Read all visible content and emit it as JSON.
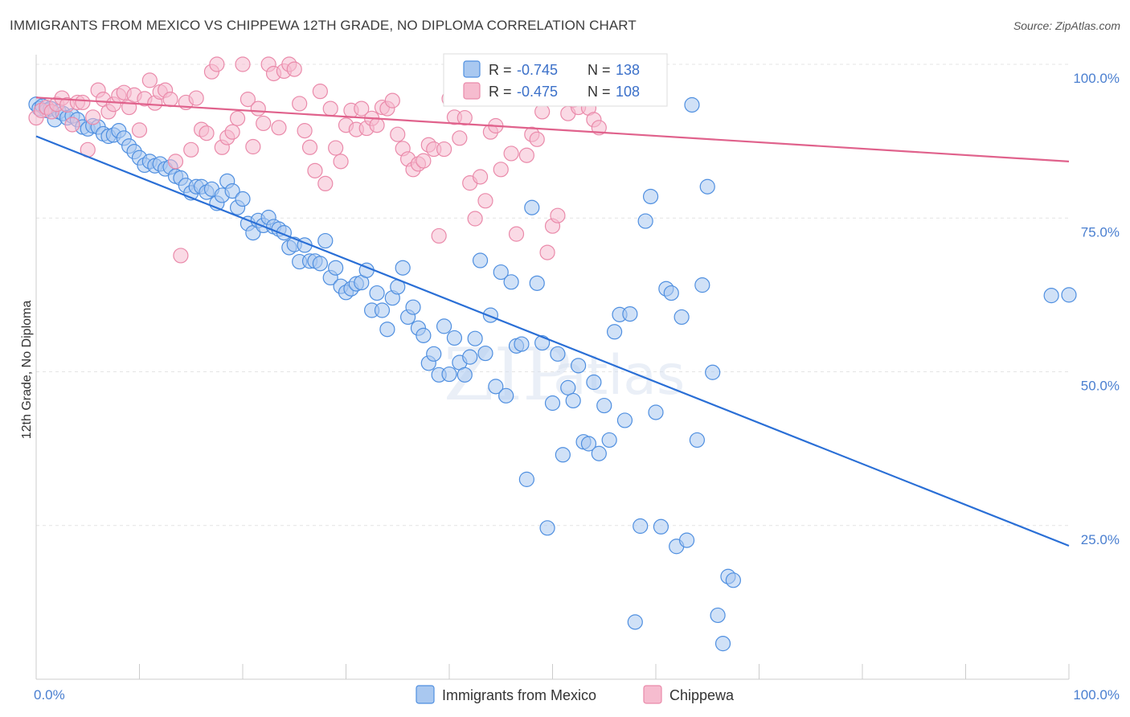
{
  "header": {
    "title": "IMMIGRANTS FROM MEXICO VS CHIPPEWA 12TH GRADE, NO DIPLOMA CORRELATION CHART",
    "source": "Source: ZipAtlas.com"
  },
  "watermark": {
    "zip": "ZIP",
    "atlas": "atlas"
  },
  "colors": {
    "blue": "#4f8fe0",
    "blue_fill": "#a9c8f0",
    "blue_line": "#2a6fd6",
    "pink": "#ea8aaa",
    "pink_fill": "#f6bccf",
    "pink_line": "#e0628c",
    "axis_label": "#4a7fd0"
  },
  "legend": {
    "r_label": "R =",
    "n_label": "N =",
    "series": [
      {
        "r": "-0.745",
        "n": "138"
      },
      {
        "r": "-0.475",
        "n": "108"
      }
    ]
  },
  "bottom_legend": [
    "Immigrants from Mexico",
    "Chippewa"
  ],
  "chart_data": {
    "type": "scatter",
    "title": "IMMIGRANTS FROM MEXICO VS CHIPPEWA 12TH GRADE, NO DIPLOMA CORRELATION CHART",
    "xlabel": "",
    "ylabel": "12th Grade, No Diploma",
    "xlim": [
      0,
      100
    ],
    "ylim": [
      0,
      100
    ],
    "x_tick_labels": [
      "0.0%",
      "100.0%"
    ],
    "y_tick_labels": [
      "100.0%",
      "75.0%",
      "50.0%",
      "25.0%"
    ],
    "y_ticks": [
      100,
      75,
      50,
      25
    ],
    "grid": true,
    "legend_position": "top-center",
    "series": [
      {
        "name": "Immigrants from Mexico",
        "trend": [
          [
            0,
            88.3
          ],
          [
            100,
            21.7
          ]
        ],
        "points": [
          [
            0,
            93.5
          ],
          [
            0.3,
            92.8
          ],
          [
            0.6,
            93.2
          ],
          [
            1,
            92.5
          ],
          [
            1.4,
            92.8
          ],
          [
            1.8,
            91
          ],
          [
            2.2,
            92.3
          ],
          [
            2.6,
            92
          ],
          [
            3,
            91.3
          ],
          [
            3.5,
            91.6
          ],
          [
            4,
            91
          ],
          [
            4.5,
            89.8
          ],
          [
            5,
            89.5
          ],
          [
            5.5,
            90
          ],
          [
            6,
            89.8
          ],
          [
            6.5,
            88.7
          ],
          [
            7,
            88.3
          ],
          [
            7.5,
            88.5
          ],
          [
            8,
            89.2
          ],
          [
            8.5,
            88
          ],
          [
            9,
            86.7
          ],
          [
            9.5,
            85.8
          ],
          [
            10,
            84.8
          ],
          [
            10.5,
            83.6
          ],
          [
            11,
            84.2
          ],
          [
            11.5,
            83.5
          ],
          [
            12,
            83.8
          ],
          [
            12.5,
            83
          ],
          [
            13,
            83.3
          ],
          [
            13.5,
            81.8
          ],
          [
            14,
            81.5
          ],
          [
            14.5,
            80.3
          ],
          [
            15,
            79.1
          ],
          [
            15.5,
            80.1
          ],
          [
            16,
            80.1
          ],
          [
            16.5,
            79.2
          ],
          [
            17,
            79.7
          ],
          [
            17.5,
            77.4
          ],
          [
            18,
            78.7
          ],
          [
            18.5,
            81
          ],
          [
            19,
            79.4
          ],
          [
            19.5,
            76.7
          ],
          [
            20,
            78.1
          ],
          [
            20.5,
            74.1
          ],
          [
            21,
            72.6
          ],
          [
            21.5,
            74.6
          ],
          [
            22,
            73.8
          ],
          [
            22.5,
            75.1
          ],
          [
            23,
            73.6
          ],
          [
            23.5,
            73.2
          ],
          [
            24,
            72.6
          ],
          [
            24.5,
            70.2
          ],
          [
            25,
            70.7
          ],
          [
            25.5,
            67.9
          ],
          [
            26,
            70.6
          ],
          [
            26.5,
            68
          ],
          [
            27,
            68
          ],
          [
            27.5,
            67.6
          ],
          [
            28,
            71.3
          ],
          [
            28.5,
            65.3
          ],
          [
            29,
            66.9
          ],
          [
            29.5,
            63.9
          ],
          [
            30,
            62.9
          ],
          [
            30.5,
            63.5
          ],
          [
            31,
            64.3
          ],
          [
            31.5,
            64.5
          ],
          [
            32,
            66.5
          ],
          [
            32.5,
            60
          ],
          [
            33,
            62.8
          ],
          [
            33.5,
            60
          ],
          [
            34,
            56.9
          ],
          [
            34.5,
            62
          ],
          [
            35,
            63.8
          ],
          [
            35.5,
            66.9
          ],
          [
            36,
            58.9
          ],
          [
            36.5,
            60.5
          ],
          [
            37,
            57.1
          ],
          [
            37.5,
            55.9
          ],
          [
            38,
            51.4
          ],
          [
            38.5,
            52.9
          ],
          [
            39,
            49.5
          ],
          [
            39.5,
            57.4
          ],
          [
            40,
            49.6
          ],
          [
            40.5,
            55.5
          ],
          [
            41,
            51.5
          ],
          [
            41.5,
            49.5
          ],
          [
            42,
            52.4
          ],
          [
            42.5,
            55.4
          ],
          [
            43,
            68.1
          ],
          [
            43.5,
            53
          ],
          [
            44,
            59.2
          ],
          [
            44.5,
            47.6
          ],
          [
            45,
            66.2
          ],
          [
            45.5,
            46.1
          ],
          [
            46,
            64.6
          ],
          [
            46.5,
            54.2
          ],
          [
            47,
            54.5
          ],
          [
            47.5,
            32.5
          ],
          [
            48,
            76.7
          ],
          [
            48.5,
            64.4
          ],
          [
            49,
            54.7
          ],
          [
            49.5,
            24.6
          ],
          [
            50,
            44.9
          ],
          [
            50.5,
            52.9
          ],
          [
            51,
            36.5
          ],
          [
            51.5,
            47.4
          ],
          [
            52,
            45.3
          ],
          [
            52.5,
            51
          ],
          [
            53,
            38.6
          ],
          [
            53.5,
            38.3
          ],
          [
            54,
            48.3
          ],
          [
            54.5,
            36.7
          ],
          [
            55,
            44.5
          ],
          [
            55.5,
            38.9
          ],
          [
            56,
            56.5
          ],
          [
            56.5,
            59.3
          ],
          [
            57,
            42.1
          ],
          [
            57.5,
            59.4
          ],
          [
            58,
            9.3
          ],
          [
            58.5,
            24.9
          ],
          [
            59,
            74.5
          ],
          [
            59.5,
            78.5
          ],
          [
            60,
            43.4
          ],
          [
            60.5,
            24.8
          ],
          [
            61,
            63.5
          ],
          [
            61.5,
            62.8
          ],
          [
            62,
            21.6
          ],
          [
            62.5,
            58.9
          ],
          [
            63,
            22.6
          ],
          [
            63.5,
            93.4
          ],
          [
            64,
            38.9
          ],
          [
            64.5,
            64.1
          ],
          [
            65,
            80.1
          ],
          [
            65.5,
            49.9
          ],
          [
            66,
            10.4
          ],
          [
            66.5,
            5.8
          ],
          [
            67,
            16.7
          ],
          [
            67.5,
            16.1
          ],
          [
            98.3,
            62.4
          ],
          [
            100,
            62.5
          ]
        ]
      },
      {
        "name": "Chippewa",
        "trend": [
          [
            0,
            94.6
          ],
          [
            100,
            84.2
          ]
        ],
        "points": [
          [
            0,
            91.3
          ],
          [
            0.5,
            92.5
          ],
          [
            1,
            93
          ],
          [
            1.5,
            92.3
          ],
          [
            2,
            93.5
          ],
          [
            2.5,
            94.5
          ],
          [
            3,
            93.4
          ],
          [
            3.5,
            90.2
          ],
          [
            4,
            93.8
          ],
          [
            4.5,
            93.8
          ],
          [
            5,
            86.1
          ],
          [
            5.5,
            91.4
          ],
          [
            6,
            95.8
          ],
          [
            6.5,
            94.3
          ],
          [
            7,
            92.3
          ],
          [
            7.5,
            93.5
          ],
          [
            8,
            94.9
          ],
          [
            8.5,
            95.4
          ],
          [
            9,
            93
          ],
          [
            9.5,
            95
          ],
          [
            10,
            89.3
          ],
          [
            10.5,
            94.4
          ],
          [
            11,
            97.4
          ],
          [
            11.5,
            93.7
          ],
          [
            12,
            95.5
          ],
          [
            12.5,
            95.8
          ],
          [
            13,
            94.3
          ],
          [
            13.5,
            84.2
          ],
          [
            14,
            68.9
          ],
          [
            14.5,
            93.8
          ],
          [
            15,
            86.1
          ],
          [
            15.5,
            94.5
          ],
          [
            16,
            89.4
          ],
          [
            16.5,
            88.8
          ],
          [
            17,
            98.8
          ],
          [
            17.5,
            100
          ],
          [
            18,
            86.5
          ],
          [
            18.5,
            88.1
          ],
          [
            19,
            89
          ],
          [
            19.5,
            91.2
          ],
          [
            20,
            100
          ],
          [
            20.5,
            94.3
          ],
          [
            21,
            86.6
          ],
          [
            21.5,
            92.8
          ],
          [
            22,
            90.4
          ],
          [
            22.5,
            100
          ],
          [
            23,
            98.5
          ],
          [
            23.5,
            89.7
          ],
          [
            24,
            98.9
          ],
          [
            24.5,
            100
          ],
          [
            25,
            99.2
          ],
          [
            25.5,
            93.6
          ],
          [
            26,
            89.2
          ],
          [
            26.5,
            86.5
          ],
          [
            27,
            82.7
          ],
          [
            27.5,
            95.6
          ],
          [
            28,
            80.6
          ],
          [
            28.5,
            92.8
          ],
          [
            29,
            86.4
          ],
          [
            29.5,
            84.2
          ],
          [
            30,
            90.1
          ],
          [
            30.5,
            92.5
          ],
          [
            31,
            89.4
          ],
          [
            31.5,
            92.8
          ],
          [
            32,
            89.6
          ],
          [
            32.5,
            91.2
          ],
          [
            33,
            90.1
          ],
          [
            33.5,
            93
          ],
          [
            34,
            92.8
          ],
          [
            34.5,
            94.1
          ],
          [
            35,
            88.6
          ],
          [
            35.5,
            86.3
          ],
          [
            36,
            84.6
          ],
          [
            36.5,
            82.9
          ],
          [
            37,
            83.8
          ],
          [
            37.5,
            84.3
          ],
          [
            38,
            86.9
          ],
          [
            38.5,
            86.2
          ],
          [
            39,
            72.1
          ],
          [
            39.5,
            86.2
          ],
          [
            40,
            94.4
          ],
          [
            40.5,
            91.4
          ],
          [
            41,
            88
          ],
          [
            41.5,
            91.3
          ],
          [
            42,
            80.7
          ],
          [
            42.5,
            74.9
          ],
          [
            43,
            81.7
          ],
          [
            43.5,
            77.8
          ],
          [
            44,
            89
          ],
          [
            44.5,
            90
          ],
          [
            45,
            82.9
          ],
          [
            45.5,
            100
          ],
          [
            46,
            85.5
          ],
          [
            46.5,
            72.4
          ],
          [
            47,
            95.9
          ],
          [
            47.5,
            85.2
          ],
          [
            48,
            88.6
          ],
          [
            48.5,
            87.8
          ],
          [
            49,
            92.3
          ],
          [
            49.5,
            69.4
          ],
          [
            50,
            73.7
          ],
          [
            50.5,
            75.4
          ],
          [
            51,
            95.6
          ],
          [
            51.5,
            92
          ],
          [
            52,
            94.2
          ],
          [
            52.5,
            93
          ],
          [
            53,
            95.8
          ],
          [
            53.5,
            92.9
          ],
          [
            54,
            91
          ],
          [
            54.5,
            89.7
          ]
        ]
      }
    ]
  }
}
